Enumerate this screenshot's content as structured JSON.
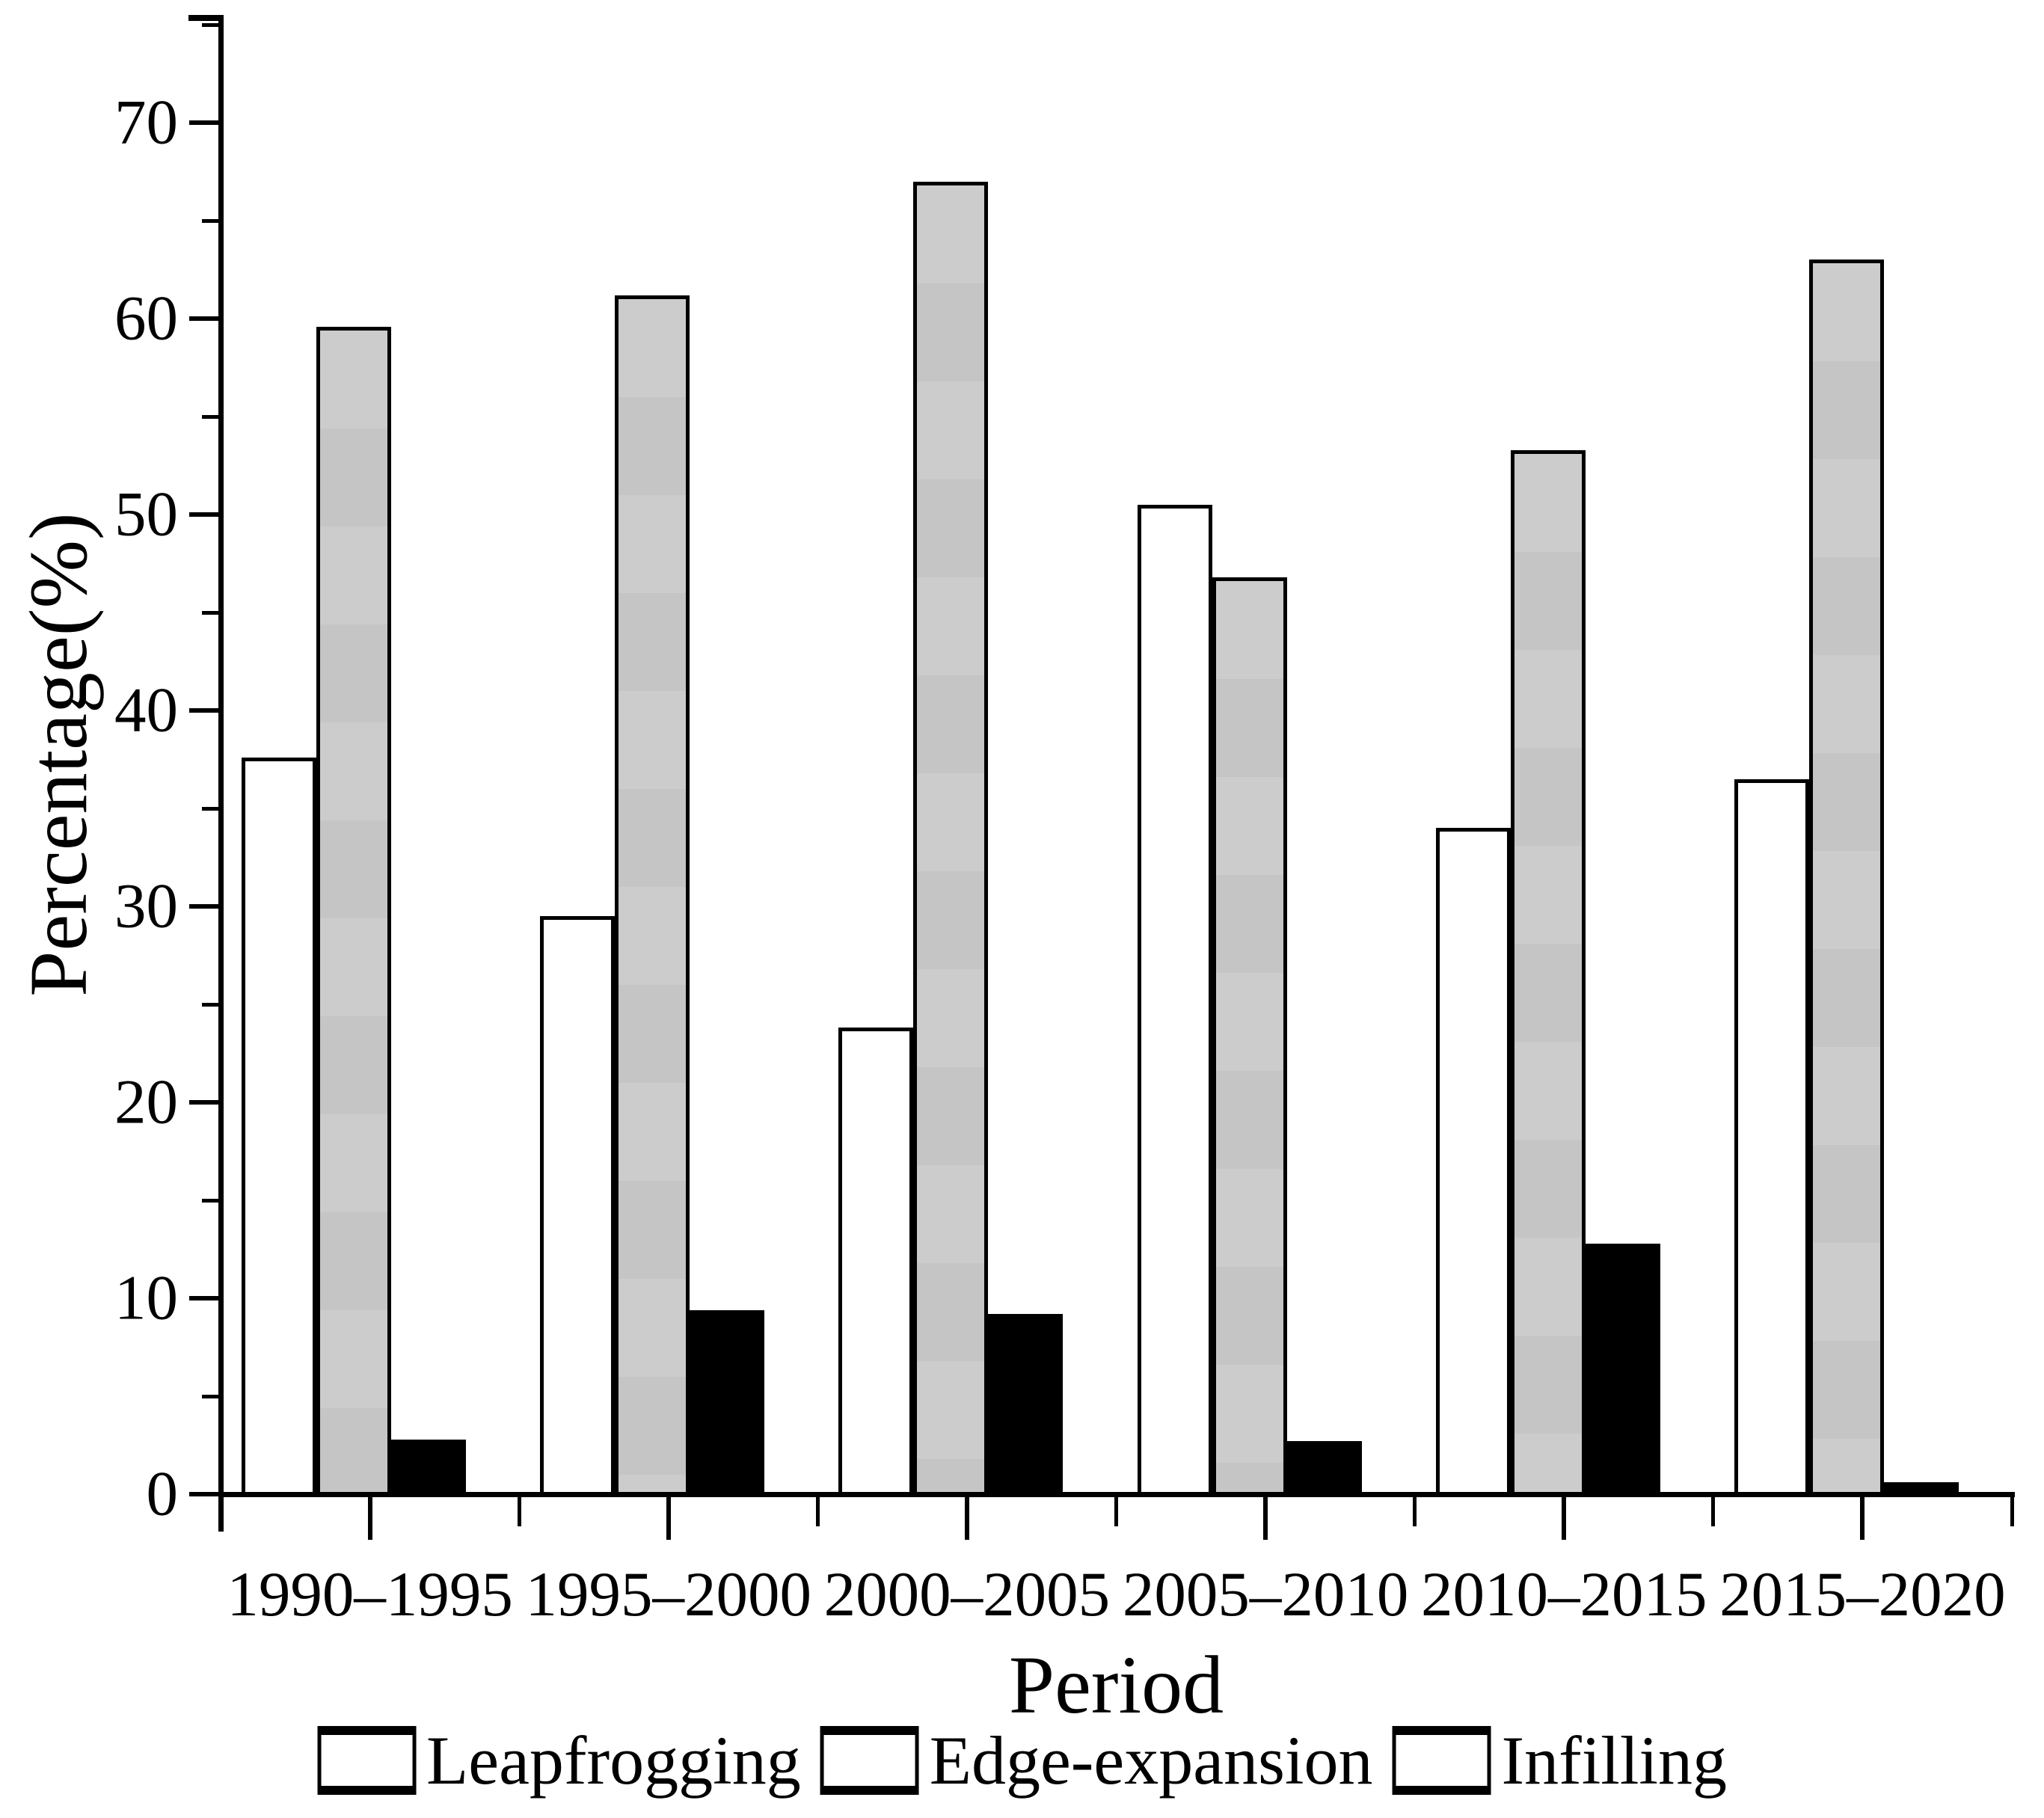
{
  "chart_data": {
    "type": "bar",
    "title": "",
    "xlabel": "Period",
    "ylabel": "Percentage(%)",
    "categories": [
      "1990–1995",
      "1995–2000",
      "2000–2005",
      "2005–2010",
      "2010–2015",
      "2015–2020"
    ],
    "series": [
      {
        "name": "Leapfrogging",
        "color": "#ffffff",
        "values": [
          37.6,
          29.5,
          23.8,
          50.5,
          34.0,
          36.5
        ]
      },
      {
        "name": "Edge-expansion",
        "color": "#c9c9c9",
        "values": [
          59.6,
          61.2,
          67.0,
          46.8,
          53.3,
          63.0
        ]
      },
      {
        "name": "Infilling",
        "color": "#000000",
        "values": [
          2.8,
          9.4,
          9.2,
          2.7,
          12.8,
          0.6
        ]
      }
    ],
    "ylim": [
      0,
      75.5
    ],
    "yticks_major": [
      0,
      10,
      20,
      30,
      40,
      50,
      60,
      70
    ],
    "yticks_minor": [
      5,
      15,
      25,
      35,
      45,
      55,
      65,
      75
    ],
    "grid": false,
    "legend_position": "bottom",
    "bar_border_color": "#000000",
    "axis_color": "#000000"
  }
}
